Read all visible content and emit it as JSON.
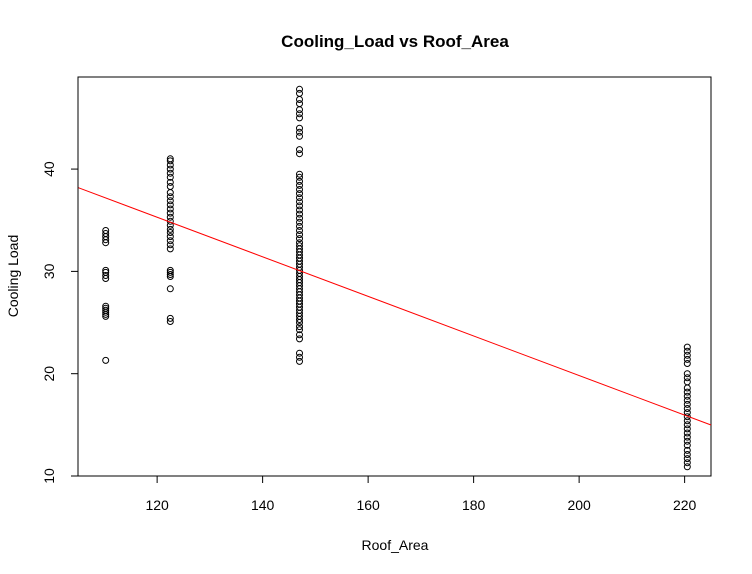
{
  "chart_data": {
    "type": "scatter",
    "title": "Cooling_Load vs Roof_Area",
    "xlabel": "Roof_Area",
    "ylabel": "Cooling Load",
    "xlim": [
      105,
      225
    ],
    "ylim": [
      10,
      49
    ],
    "xticks": [
      120,
      140,
      160,
      180,
      200,
      220
    ],
    "yticks": [
      10,
      20,
      30,
      40
    ],
    "grid": false,
    "legend": "none",
    "point_color": "#000000",
    "regression_line": {
      "intercept": 58.5,
      "slope": -0.1934,
      "color": "#ff0000"
    },
    "series": [
      {
        "x": 110.25,
        "y": [
          21.3,
          25.6,
          25.8,
          26.0,
          26.2,
          26.4,
          26.6,
          29.3,
          29.6,
          29.9,
          30.1,
          32.8,
          33.1,
          33.4,
          33.7,
          34.0
        ]
      },
      {
        "x": 122.5,
        "y": [
          25.1,
          25.4,
          28.3,
          29.5,
          29.7,
          29.9,
          30.1,
          32.2,
          32.6,
          33.0,
          33.4,
          33.8,
          34.1,
          34.5,
          34.9,
          35.3,
          35.7,
          36.1,
          36.5,
          36.9,
          37.3,
          37.7,
          38.3,
          38.7,
          39.2,
          39.6,
          40.0,
          40.4,
          40.8,
          41.0
        ]
      },
      {
        "x": 147.0,
        "y": [
          21.2,
          21.6,
          22.0,
          23.4,
          23.8,
          24.3,
          24.6,
          25.0,
          25.3,
          25.6,
          25.9,
          26.2,
          26.5,
          26.8,
          27.1,
          27.4,
          27.7,
          28.0,
          28.3,
          28.6,
          28.9,
          29.2,
          29.5,
          29.8,
          30.1,
          30.4,
          30.7,
          31.0,
          31.3,
          31.6,
          31.9,
          32.2,
          32.5,
          32.8,
          33.2,
          33.6,
          34.0,
          34.4,
          34.8,
          35.2,
          35.6,
          36.0,
          36.4,
          36.8,
          37.2,
          37.6,
          38.0,
          38.4,
          38.8,
          39.2,
          39.5,
          41.5,
          41.9,
          43.2,
          43.6,
          44.0,
          45.0,
          45.4,
          45.8,
          46.4,
          46.8,
          47.4,
          47.8
        ]
      },
      {
        "x": 220.5,
        "y": [
          10.9,
          11.3,
          11.7,
          12.1,
          12.5,
          13.0,
          13.4,
          13.8,
          14.2,
          14.6,
          15.0,
          15.4,
          15.8,
          16.2,
          16.6,
          17.0,
          17.4,
          17.8,
          18.2,
          18.6,
          19.2,
          19.6,
          20.0,
          21.0,
          21.4,
          21.8,
          22.2,
          22.6
        ]
      }
    ]
  }
}
